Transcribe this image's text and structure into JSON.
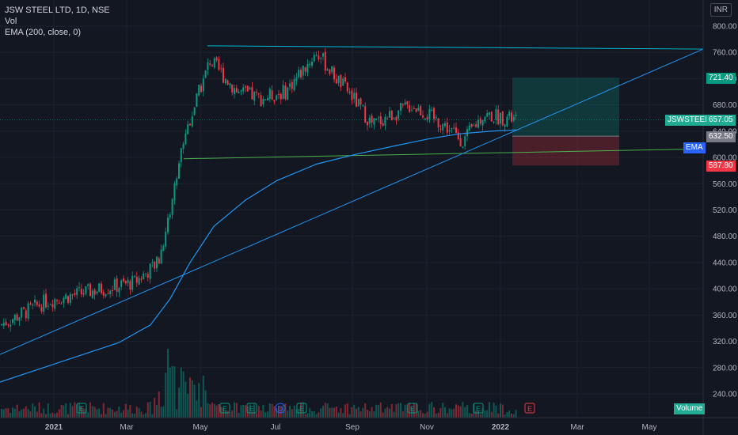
{
  "symbol_info": "JSW STEEL LTD, 1D, NSE",
  "indicator_vol": "Vol",
  "indicator_ema": "EMA (200, close, 0)",
  "currency_label": "INR",
  "price_axis": {
    "ticks": [
      "800.00",
      "760.00",
      "720.00",
      "680.00",
      "640.00",
      "600.00",
      "560.00",
      "520.00",
      "480.00",
      "440.00",
      "400.00",
      "360.00",
      "320.00",
      "280.00",
      "240.00"
    ],
    "values": [
      800,
      760,
      720,
      680,
      640,
      600,
      560,
      520,
      480,
      440,
      400,
      360,
      320,
      280,
      240
    ]
  },
  "time_axis": [
    "2021",
    "Mar",
    "May",
    "Jul",
    "Sep",
    "Nov",
    "2022",
    "Mar",
    "May"
  ],
  "price_labels": {
    "take_profit": "721.40",
    "symbol": "JSWSTEEL",
    "current": "657.05",
    "entry": "632.50",
    "ema": "EMA",
    "stop_loss": "587.80",
    "volume": "Volume"
  },
  "event_markers": [
    "E",
    "E",
    "E",
    "D",
    "E",
    "E",
    "E",
    "E"
  ],
  "colors": {
    "up": "#089981",
    "down": "#f23645",
    "ema_line": "#2962ff",
    "trend_line": "#2196f3",
    "resistance": "#00bcd4",
    "support": "#4caf50"
  },
  "chart_data": {
    "type": "candlestick",
    "title": "JSW STEEL LTD, 1D, NSE",
    "ylim": [
      220,
      820
    ],
    "key_levels": {
      "resistance": 770,
      "support": 598,
      "take_profit": 721.4,
      "entry": 632.5,
      "stop_loss": 587.8,
      "last_close": 657.05
    },
    "price_path_approx": [
      {
        "date": "2020-12",
        "close": 345
      },
      {
        "date": "2021-01",
        "close": 380
      },
      {
        "date": "2021-02",
        "close": 395
      },
      {
        "date": "2021-03",
        "close": 410
      },
      {
        "date": "2021-04",
        "close": 470
      },
      {
        "date": "2021-04-20",
        "close": 620
      },
      {
        "date": "2021-05",
        "close": 740
      },
      {
        "date": "2021-06",
        "close": 690
      },
      {
        "date": "2021-07",
        "close": 700
      },
      {
        "date": "2021-08",
        "close": 760
      },
      {
        "date": "2021-09",
        "close": 660
      },
      {
        "date": "2021-10",
        "close": 690
      },
      {
        "date": "2021-11",
        "close": 640
      },
      {
        "date": "2021-12",
        "close": 660
      },
      {
        "date": "2022-01",
        "close": 657
      }
    ]
  }
}
